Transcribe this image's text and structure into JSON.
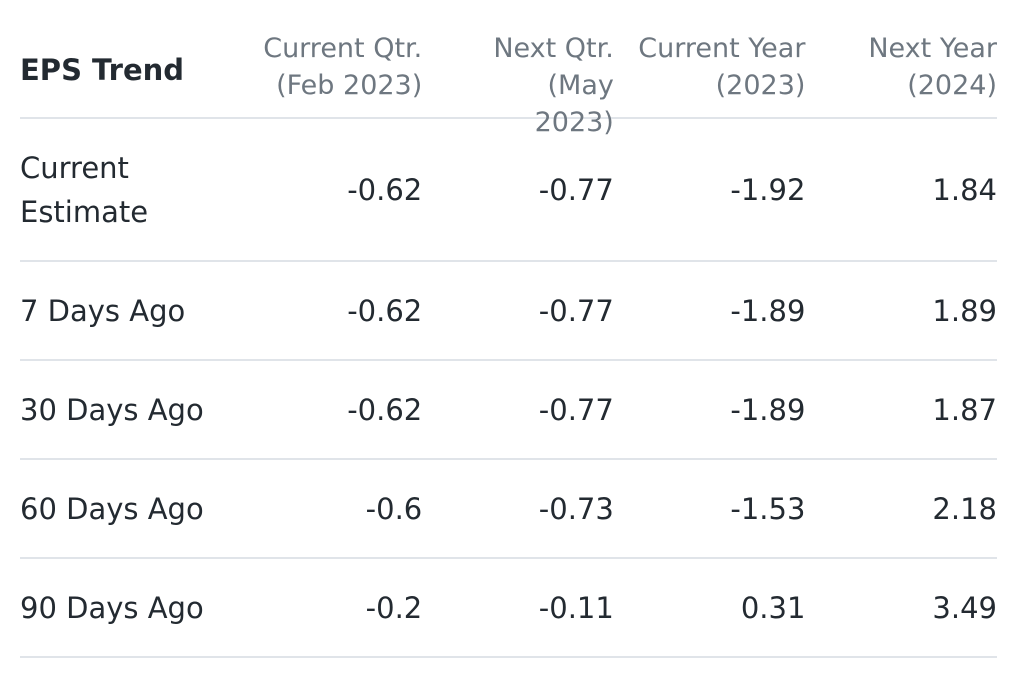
{
  "table": {
    "title": "EPS Trend",
    "columns": [
      {
        "line1": "Current Qtr.",
        "line2": "(Feb 2023)"
      },
      {
        "line1": "Next Qtr. (May",
        "line2": "2023)"
      },
      {
        "line1": "Current Year",
        "line2": "(2023)"
      },
      {
        "line1": "Next Year",
        "line2": "(2024)"
      }
    ],
    "rows": [
      {
        "label": "Current Estimate",
        "values": [
          "-0.62",
          "-0.77",
          "-1.92",
          "1.84"
        ]
      },
      {
        "label": "7 Days Ago",
        "values": [
          "-0.62",
          "-0.77",
          "-1.89",
          "1.89"
        ]
      },
      {
        "label": "30 Days Ago",
        "values": [
          "-0.62",
          "-0.77",
          "-1.89",
          "1.87"
        ]
      },
      {
        "label": "60 Days Ago",
        "values": [
          "-0.6",
          "-0.73",
          "-1.53",
          "2.18"
        ]
      },
      {
        "label": "90 Days Ago",
        "values": [
          "-0.2",
          "-0.11",
          "0.31",
          "3.49"
        ]
      }
    ]
  }
}
